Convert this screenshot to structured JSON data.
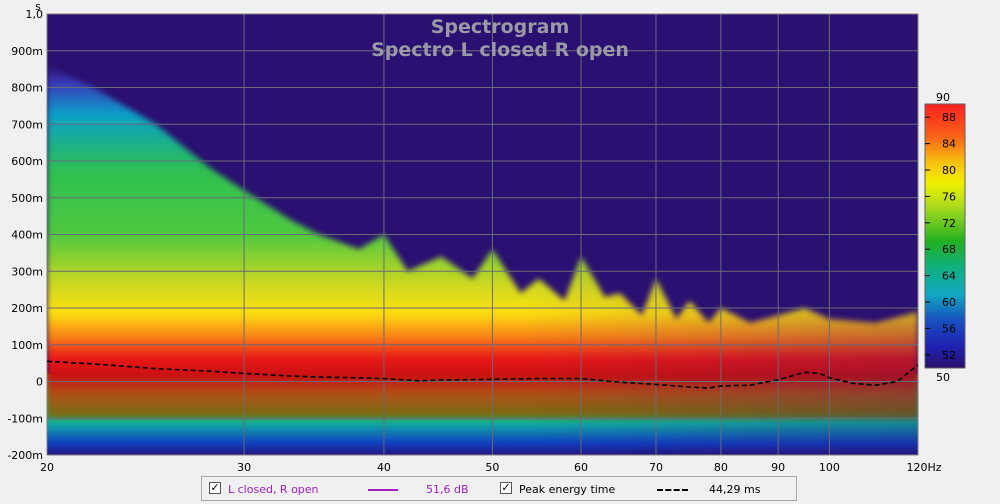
{
  "chart_data": {
    "type": "heatmap",
    "title": "Spectrogram",
    "subtitle": "Spectro L closed R open",
    "x_axis": {
      "scale": "log",
      "range": [
        20,
        120
      ],
      "ticks": [
        "20",
        "30",
        "40",
        "50",
        "60",
        "70",
        "80",
        "90",
        "100",
        "120Hz"
      ],
      "tick_values": [
        20,
        30,
        40,
        50,
        60,
        70,
        80,
        90,
        100,
        120
      ]
    },
    "y_axis": {
      "unit": "s",
      "range": [
        -0.2,
        1.0
      ],
      "ticks": [
        "1,0",
        "900m",
        "800m",
        "700m",
        "600m",
        "500m",
        "400m",
        "300m",
        "200m",
        "100m",
        "0",
        "-100m",
        "-200m"
      ],
      "tick_values": [
        1.0,
        0.9,
        0.8,
        0.7,
        0.6,
        0.5,
        0.4,
        0.3,
        0.2,
        0.1,
        0,
        -0.1,
        -0.2
      ]
    },
    "colorbar": {
      "min": 50,
      "max": 90,
      "min_label": "50",
      "max_label": "90",
      "tick_labels": [
        "88",
        "84",
        "80",
        "76",
        "72",
        "68",
        "64",
        "60",
        "56",
        "52"
      ],
      "tick_values": [
        88,
        84,
        80,
        76,
        72,
        68,
        64,
        60,
        56,
        52
      ]
    },
    "grid": true,
    "legend_position": "bottom",
    "decay_edge": {
      "description_units": "x in Hz, y in seconds (upper boundary of energy above 50 dB)",
      "x": [
        20,
        22,
        25,
        28,
        30,
        33,
        35,
        38,
        40,
        42,
        45,
        48,
        50,
        53,
        55,
        58,
        60,
        63,
        65,
        68,
        70,
        73,
        75,
        78,
        80,
        85,
        90,
        95,
        100,
        110,
        120
      ],
      "y": [
        0.86,
        0.8,
        0.7,
        0.58,
        0.52,
        0.44,
        0.4,
        0.36,
        0.4,
        0.3,
        0.34,
        0.28,
        0.36,
        0.24,
        0.28,
        0.22,
        0.34,
        0.23,
        0.24,
        0.18,
        0.28,
        0.17,
        0.22,
        0.16,
        0.2,
        0.16,
        0.18,
        0.2,
        0.17,
        0.16,
        0.19
      ]
    },
    "peak_energy_time": {
      "x": [
        20,
        22,
        25,
        28,
        30,
        33,
        35,
        38,
        40,
        43,
        45,
        50,
        55,
        60,
        65,
        70,
        75,
        78,
        80,
        85,
        90,
        95,
        98,
        100,
        105,
        110,
        115,
        120
      ],
      "y": [
        0.055,
        0.048,
        0.035,
        0.028,
        0.022,
        0.015,
        0.012,
        0.01,
        0.008,
        0.002,
        0.004,
        0.006,
        0.008,
        0.008,
        -0.002,
        -0.008,
        -0.015,
        -0.018,
        -0.012,
        -0.01,
        0.005,
        0.025,
        0.022,
        0.01,
        -0.005,
        -0.01,
        0.0,
        0.045
      ]
    },
    "series": [
      {
        "name": "L closed, R open",
        "value_label": "51,6 dB",
        "color": "#a020c0",
        "checked": true
      },
      {
        "name": "Peak energy time",
        "value_label": "44,29 ms",
        "color": "#000000",
        "checked": true
      }
    ]
  }
}
